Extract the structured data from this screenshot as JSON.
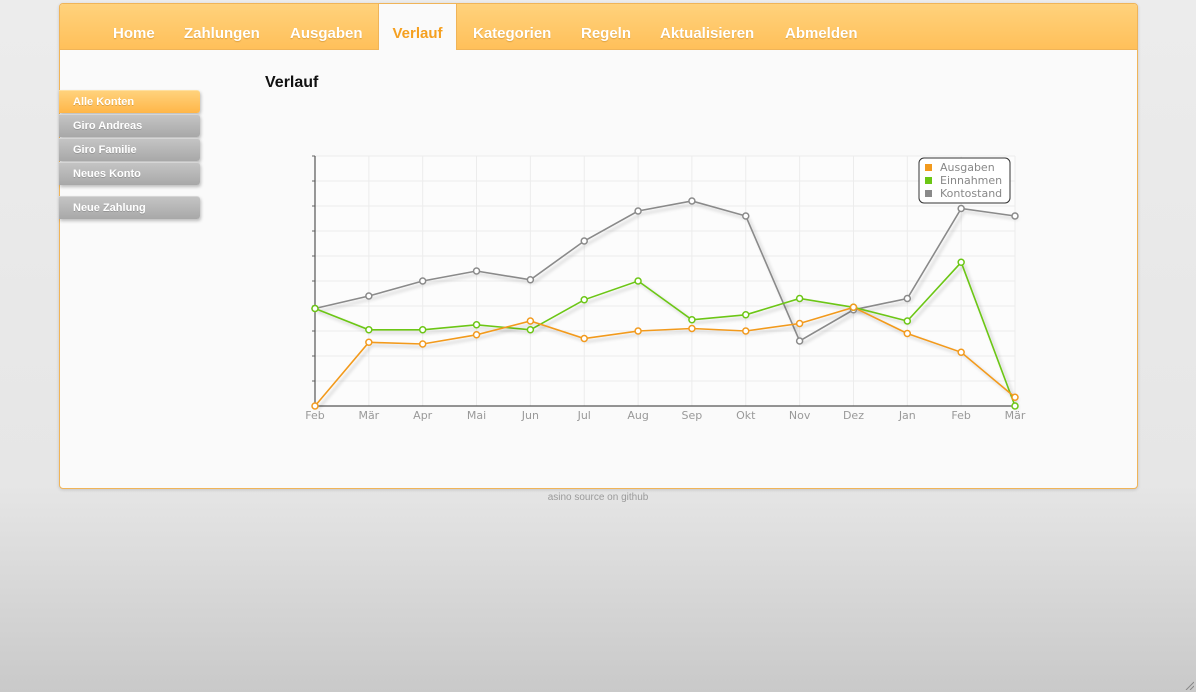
{
  "nav": {
    "items": [
      {
        "label": "Home"
      },
      {
        "label": "Zahlungen"
      },
      {
        "label": "Ausgaben"
      },
      {
        "label": "Verlauf",
        "active": true
      },
      {
        "label": "Kategorien"
      },
      {
        "label": "Regeln"
      },
      {
        "label": "Aktualisieren"
      },
      {
        "label": "Abmelden"
      }
    ]
  },
  "page": {
    "title": "Verlauf"
  },
  "sidebar": {
    "accounts": [
      {
        "label": "Alle Konten",
        "active": true
      },
      {
        "label": "Giro Andreas"
      },
      {
        "label": "Giro Familie"
      },
      {
        "label": "Neues Konto"
      }
    ],
    "new_payment": "Neue Zahlung"
  },
  "footer": {
    "text": "asino source on github"
  },
  "colors": {
    "accent": "#ffc05a",
    "active_text": "#f5a020",
    "ausgaben": "#f29a1e",
    "einnahmen": "#6cc615",
    "kontostand": "#8a8a8a"
  },
  "chart_data": {
    "type": "line",
    "categories": [
      "Feb",
      "Mär",
      "Apr",
      "Mai",
      "Jun",
      "Jul",
      "Aug",
      "Sep",
      "Okt",
      "Nov",
      "Dez",
      "Jan",
      "Feb",
      "Mär"
    ],
    "ylim": [
      0,
      10
    ],
    "grid": true,
    "legend": "top-right",
    "series": [
      {
        "name": "Ausgaben",
        "color": "#f29a1e",
        "values": [
          0,
          2.55,
          2.48,
          2.85,
          3.4,
          2.7,
          3.0,
          3.1,
          3.0,
          3.3,
          3.95,
          2.9,
          2.15,
          0.35
        ]
      },
      {
        "name": "Einnahmen",
        "color": "#6cc615",
        "values": [
          3.9,
          3.05,
          3.05,
          3.25,
          3.05,
          4.25,
          5.0,
          3.45,
          3.65,
          4.3,
          3.95,
          3.4,
          5.75,
          0
        ]
      },
      {
        "name": "Kontostand",
        "color": "#8a8a8a",
        "values": [
          3.9,
          4.4,
          5.0,
          5.4,
          5.05,
          6.6,
          7.8,
          8.2,
          7.6,
          2.6,
          3.85,
          4.3,
          7.9,
          7.6
        ]
      }
    ]
  }
}
